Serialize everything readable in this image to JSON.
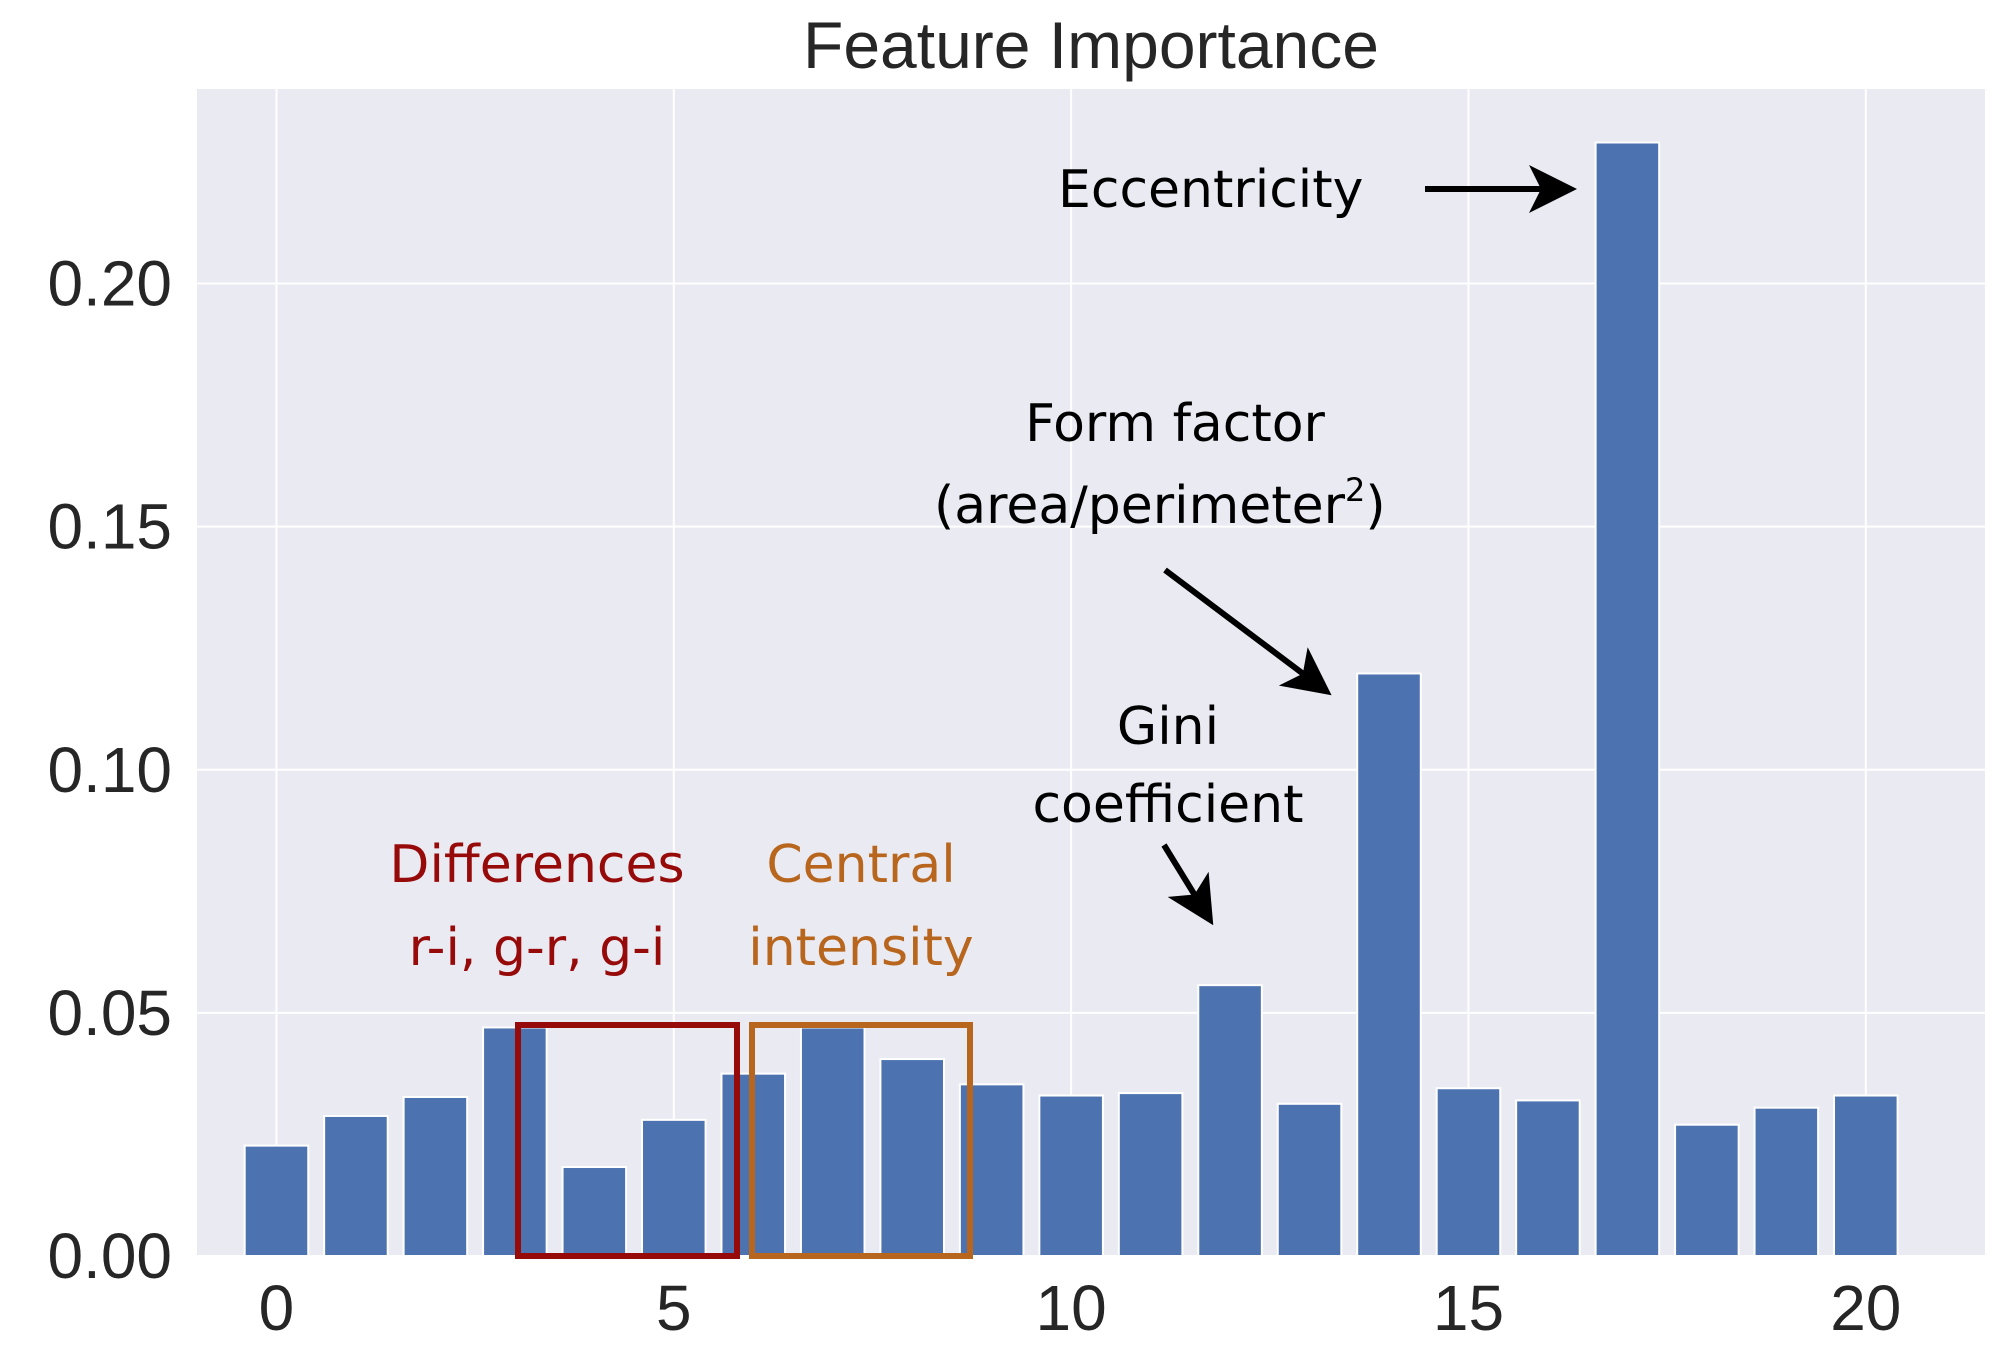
{
  "chart_data": {
    "type": "bar",
    "title": "Feature Importance",
    "xlabel": "",
    "ylabel": "",
    "x": [
      0,
      1,
      2,
      3,
      4,
      5,
      6,
      7,
      8,
      9,
      10,
      11,
      12,
      13,
      14,
      15,
      16,
      17,
      18,
      19,
      20
    ],
    "values": [
      0.0227,
      0.0288,
      0.0327,
      0.047,
      0.0183,
      0.028,
      0.0375,
      0.047,
      0.0405,
      0.0353,
      0.033,
      0.0335,
      0.0557,
      0.0313,
      0.1198,
      0.0345,
      0.032,
      0.229,
      0.027,
      0.0305,
      0.033
    ],
    "xlim": [
      -1.0,
      21.5
    ],
    "ylim": [
      0,
      0.24
    ],
    "xticks": [
      "0",
      "5",
      "10",
      "15",
      "20"
    ],
    "xtick_values": [
      0,
      5,
      10,
      15,
      20
    ],
    "yticks": [
      "0.00",
      "0.05",
      "0.10",
      "0.15",
      "0.20"
    ],
    "ytick_values": [
      0,
      0.05,
      0.1,
      0.15,
      0.2
    ],
    "grid": true,
    "bar_color": "#4c72b0",
    "background_color": "#eaeaf2",
    "annotations": {
      "eccentricity": "Eccentricity",
      "form_factor_line1": "Form factor",
      "form_factor_line2": "(area/perimeter",
      "form_factor_sup": "2",
      "form_factor_close": ")",
      "gini_line1": "Gini",
      "gini_line2": "coefficient",
      "differences_line1": "Differences",
      "differences_line2": "r-i, g-r,  g-i",
      "central_line1": "Central",
      "central_line2": "intensity"
    },
    "highlight_colors": {
      "differences": "#960a0a",
      "central": "#b8661e"
    }
  }
}
